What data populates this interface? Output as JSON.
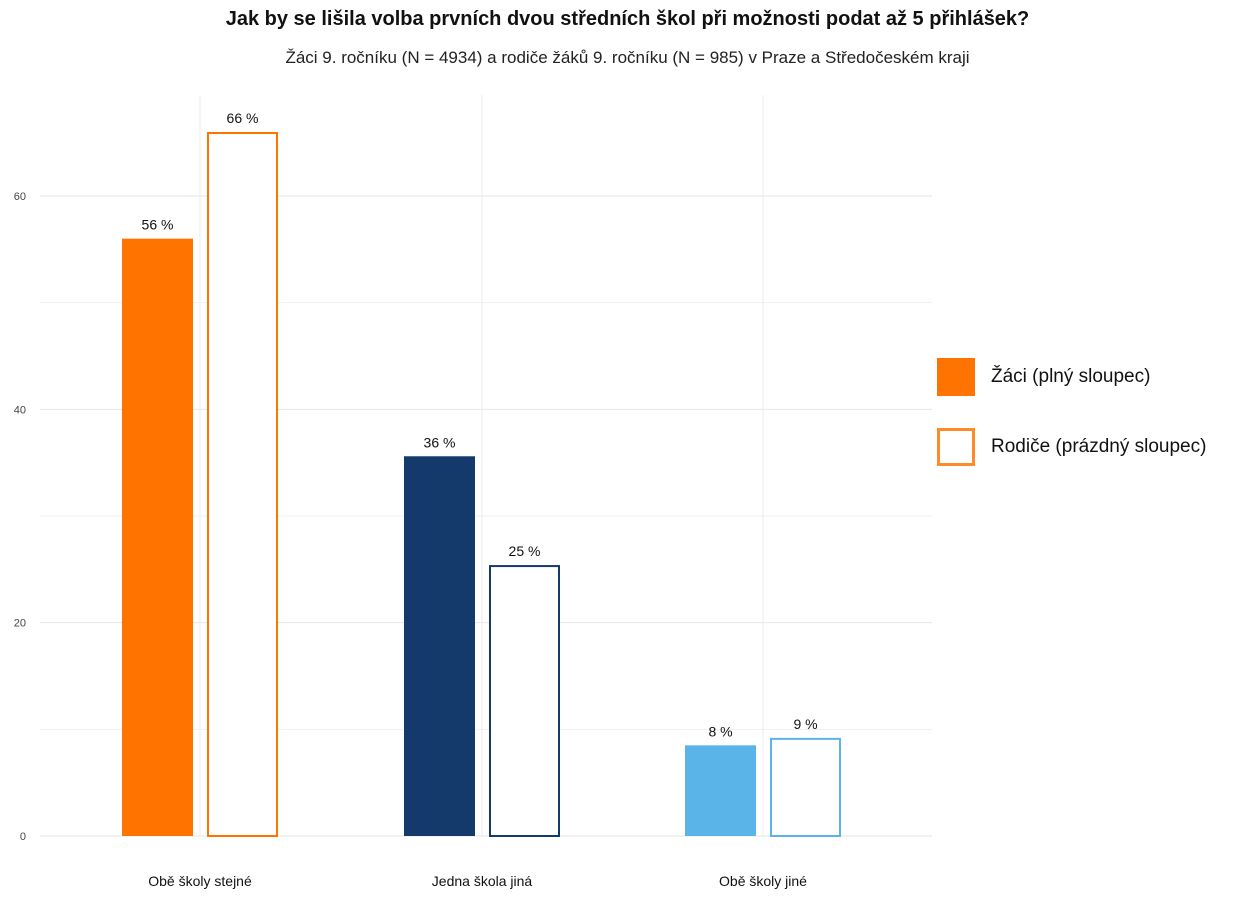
{
  "chart_data": {
    "type": "bar",
    "title": "Jak by se lišila volba prvních dvou středních škol při možnosti podat až 5 přihlášek?",
    "subtitle": "Žáci 9. ročníku (N = 4934) a rodiče žáků 9. ročníku (N = 985) v Praze a Středočeském kraji",
    "categories": [
      "Obě školy stejné",
      "Jedna škola jiná",
      "Obě školy jiné"
    ],
    "series": [
      {
        "name": "Žáci (plný sloupec)",
        "style": "filled",
        "values": [
          56,
          35.6,
          8.5
        ],
        "labels": [
          "56 %",
          "36 %",
          "8 %"
        ]
      },
      {
        "name": "Rodiče (prázdný sloupec)",
        "style": "outline",
        "values": [
          66,
          25.4,
          9.2
        ],
        "labels": [
          "66 %",
          "25 %",
          "9 %"
        ]
      }
    ],
    "category_colors": [
      "#ff7300",
      "#143a6b",
      "#5bb4e8"
    ],
    "y_ticks": [
      "0",
      "20",
      "40",
      "60"
    ],
    "ylim": [
      0,
      68
    ],
    "xlabel": "",
    "ylabel": "",
    "grid": true,
    "legend_position": "right"
  }
}
